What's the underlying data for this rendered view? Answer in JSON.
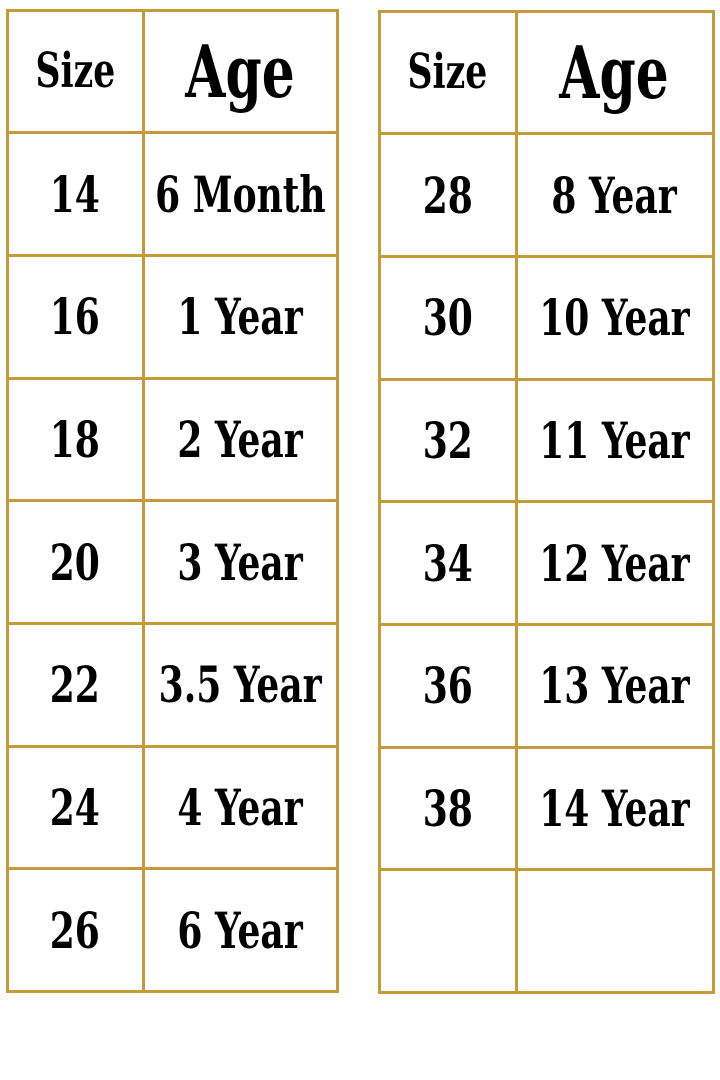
{
  "border_color": "#c49a3a",
  "left_table": {
    "headers": {
      "size": "Size",
      "age": "Age"
    },
    "rows": [
      {
        "size": "14",
        "age": "6 Month"
      },
      {
        "size": "16",
        "age": "1 Year"
      },
      {
        "size": "18",
        "age": "2 Year"
      },
      {
        "size": "20",
        "age": "3 Year"
      },
      {
        "size": "22",
        "age": "3.5 Year"
      },
      {
        "size": "24",
        "age": "4 Year"
      },
      {
        "size": "26",
        "age": "6 Year"
      }
    ]
  },
  "right_table": {
    "headers": {
      "size": "Size",
      "age": "Age"
    },
    "rows": [
      {
        "size": "28",
        "age": "8 Year"
      },
      {
        "size": "30",
        "age": "10 Year"
      },
      {
        "size": "32",
        "age": "11 Year"
      },
      {
        "size": "34",
        "age": "12 Year"
      },
      {
        "size": "36",
        "age": "13 Year"
      },
      {
        "size": "38",
        "age": "14 Year"
      },
      {
        "size": "",
        "age": ""
      }
    ]
  }
}
